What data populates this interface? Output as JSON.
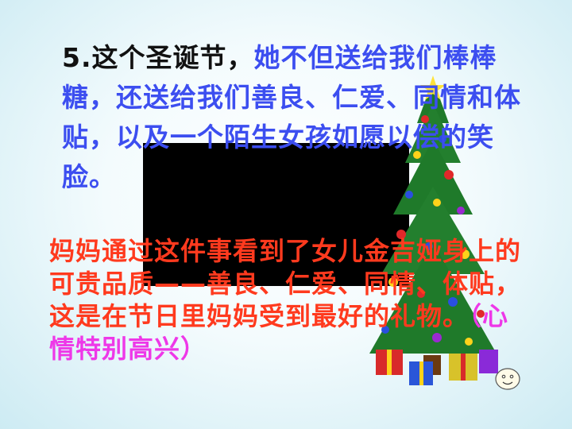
{
  "slide": {
    "para1_black": "5.这个圣诞节，",
    "para1_blue": "她不但送给我们棒棒糖，还送给我们善良、仁爱、同情和体贴，以及一个陌生女孩如愿以偿的笑脸。",
    "para2_red": "妈妈通过这件事看到了女儿金吉娅身上的可贵品质——善良、仁爱、同情、体贴，这是在节日里妈妈受到最好的礼物。",
    "para2_pink": "（心情特别高兴）"
  },
  "colors": {
    "black": "#111111",
    "blue": "#3c4ef0",
    "red": "#ff3a1e",
    "pink": "#ee38e8"
  },
  "icons": [
    "christmas-tree-icon",
    "smiley-face-icon"
  ]
}
